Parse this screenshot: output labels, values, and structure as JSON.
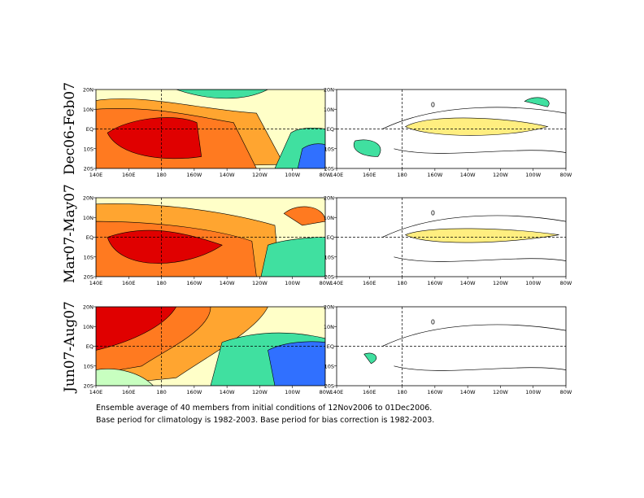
{
  "chart_data": {
    "type": "heatmap",
    "rows": [
      {
        "label": "Dec06-Feb07",
        "left": "sst",
        "right": "anomaly"
      },
      {
        "label": "Mar07-May07",
        "left": "sst",
        "right": "anomaly"
      },
      {
        "label": "Jun07-Aug07",
        "left": "sst",
        "right": "anomaly"
      }
    ],
    "x_ticks": [
      "140E",
      "160E",
      "180",
      "160W",
      "140W",
      "120W",
      "100W",
      "80W"
    ],
    "y_ticks": [
      "20N",
      "10N",
      "EQ",
      "10S",
      "20S"
    ],
    "xlim_deg_east": [
      140,
      280
    ],
    "ylim_deg": [
      -20,
      20
    ],
    "dashed_reference_lines": {
      "lat": 0,
      "lon": 180
    },
    "left_palette": [
      "#e00000",
      "#ff7a20",
      "#ffa530",
      "#ffcc44",
      "#ffee80",
      "#ffffc8",
      "#c8ffc0",
      "#40e0a0",
      "#30c8c8",
      "#3070ff",
      "#3030d0"
    ],
    "right_palette": {
      "positive": "#ffee80",
      "negative": "#40e0a0"
    },
    "contour_labels": [
      "0"
    ]
  },
  "captions": {
    "line1": "Ensemble average of 40 members from initial conditions of 12Nov2006 to 01Dec2006.",
    "line2": "Base period for climatology is 1982-2003. Base period for bias correction is 1982-2003."
  }
}
